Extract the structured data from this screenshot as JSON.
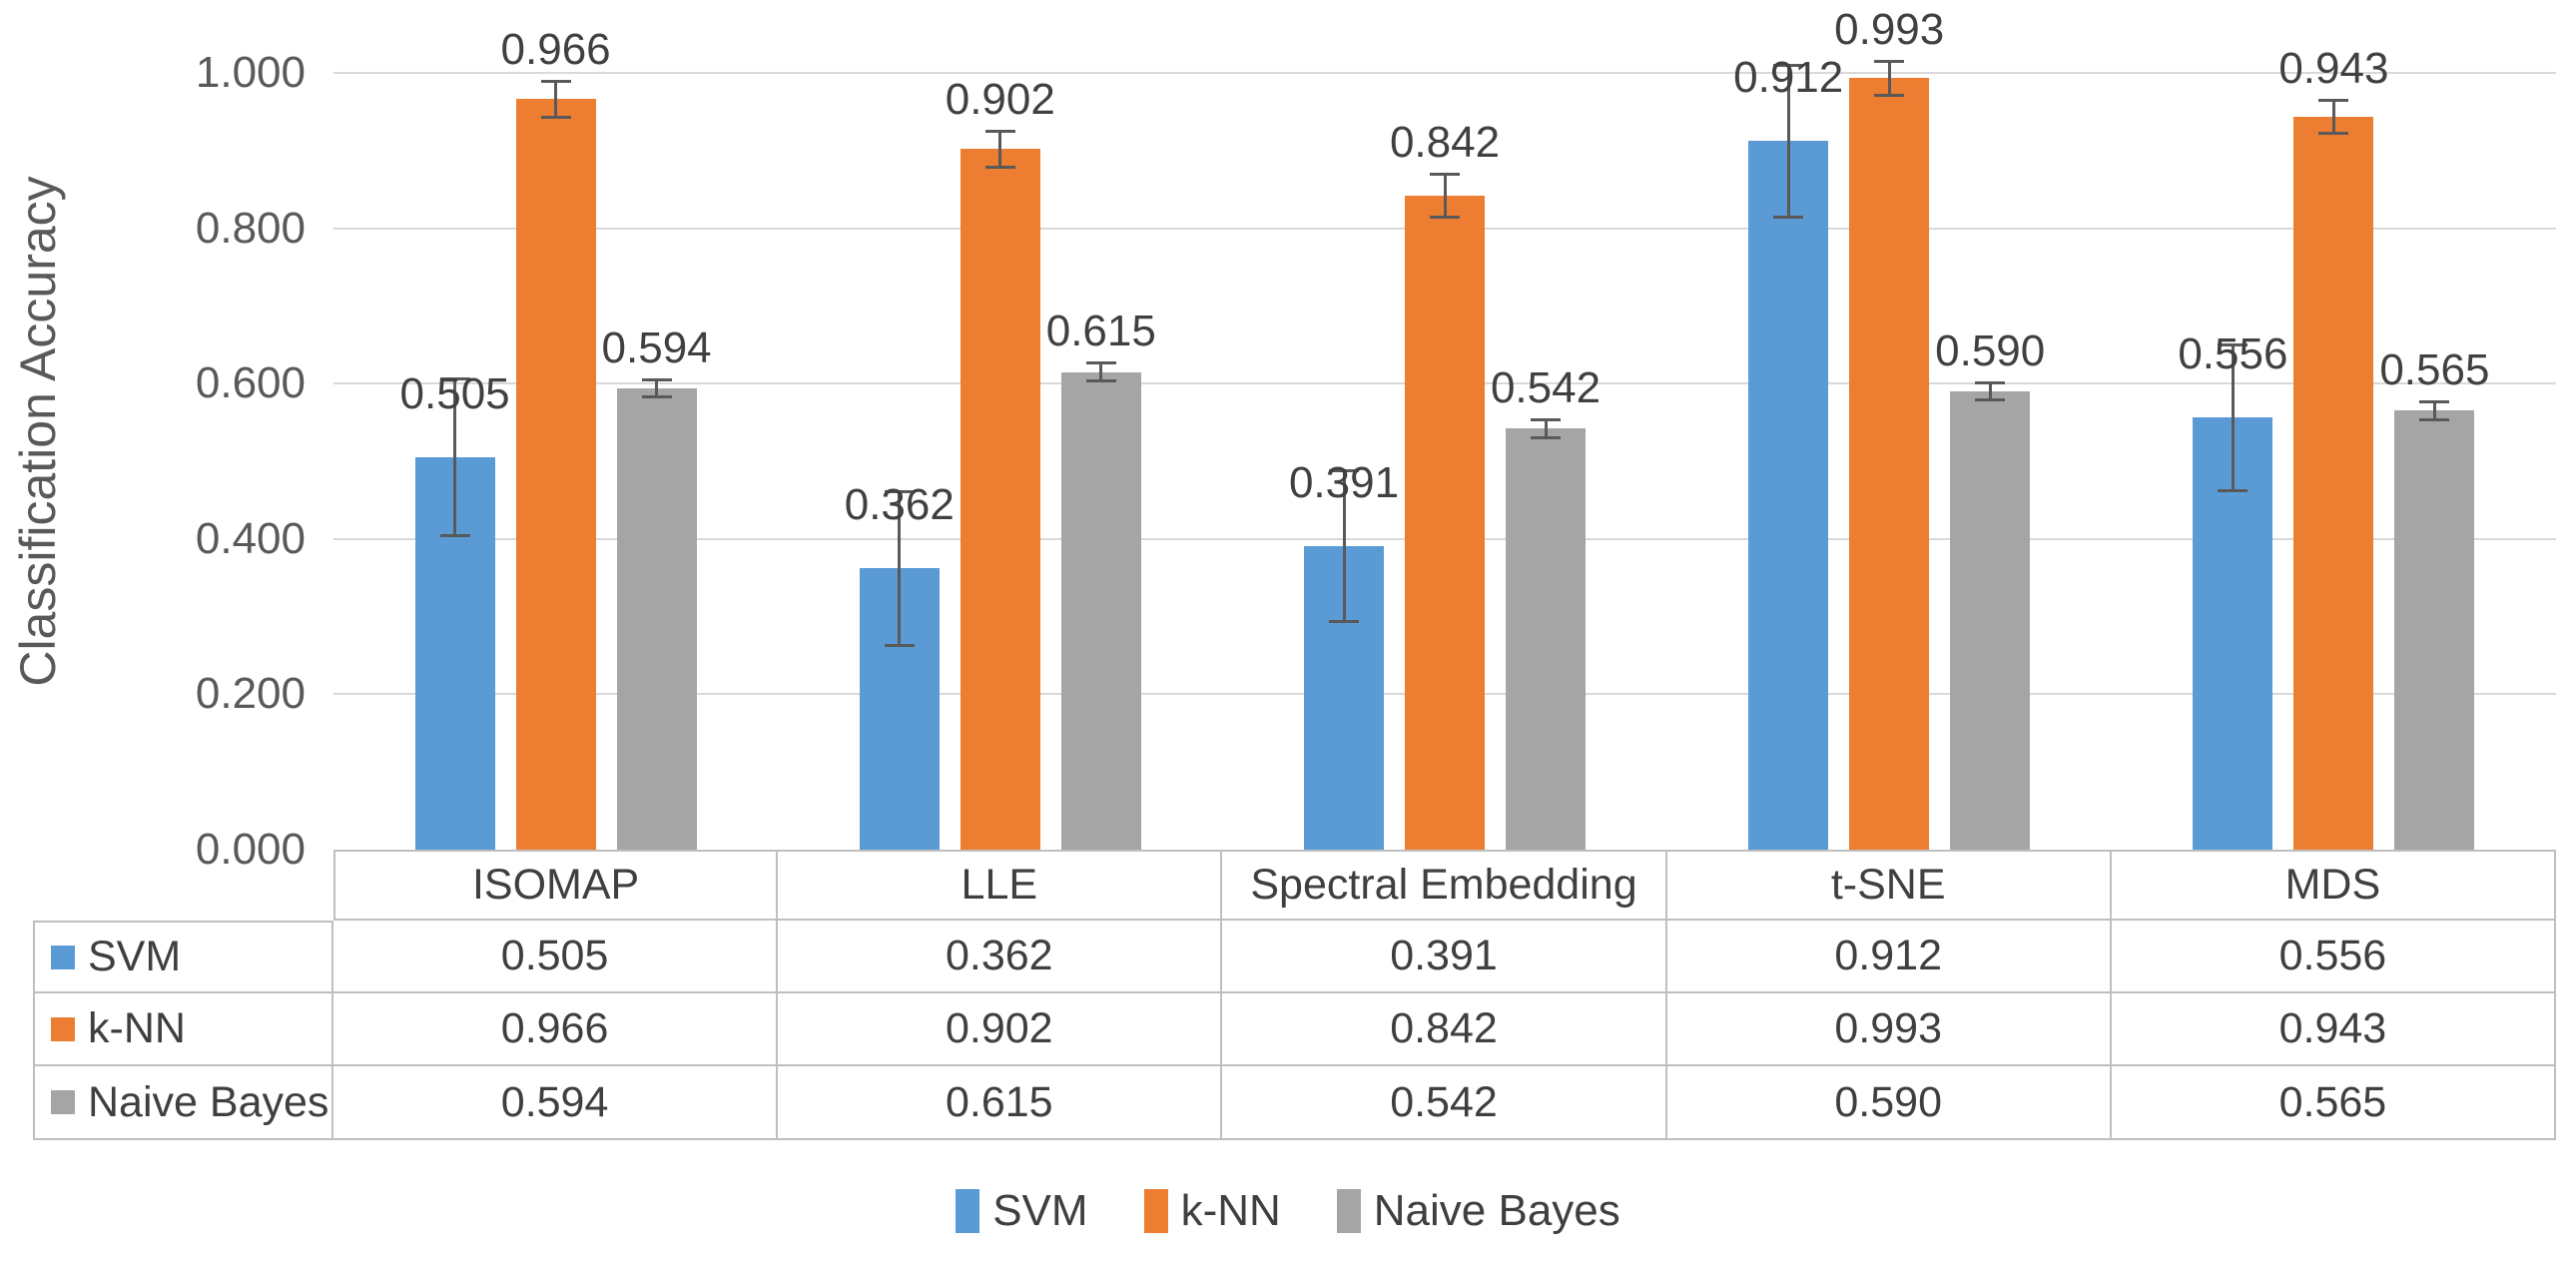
{
  "chart_data": {
    "type": "bar",
    "title": "",
    "xlabel": "",
    "ylabel": "Classification Accuracy",
    "ylim": [
      0.0,
      1.0
    ],
    "yticks": [
      0.0,
      0.2,
      0.4,
      0.6,
      0.8,
      1.0
    ],
    "ytick_labels": [
      "0.000",
      "0.200",
      "0.400",
      "0.600",
      "0.800",
      "1.000"
    ],
    "grid": true,
    "legend_position": "bottom",
    "error_bars": true,
    "categories": [
      "ISOMAP",
      "LLE",
      "Spectral Embedding",
      "t-SNE",
      "MDS"
    ],
    "series": [
      {
        "name": "SVM",
        "color": "#5B9BD5",
        "values": [
          0.505,
          0.362,
          0.391,
          0.912,
          0.556
        ],
        "errors": [
          0.102,
          0.1,
          0.098,
          0.098,
          0.095
        ]
      },
      {
        "name": "k-NN",
        "color": "#ED7D31",
        "values": [
          0.966,
          0.902,
          0.842,
          0.993,
          0.943
        ],
        "errors": [
          0.024,
          0.024,
          0.028,
          0.022,
          0.022
        ]
      },
      {
        "name": "Naive Bayes",
        "color": "#A5A5A5",
        "values": [
          0.594,
          0.615,
          0.542,
          0.59,
          0.565
        ],
        "errors": [
          0.012,
          0.012,
          0.012,
          0.012,
          0.012
        ]
      }
    ]
  },
  "table": {
    "header": [
      "",
      "ISOMAP",
      "LLE",
      "Spectral Embedding",
      "t-SNE",
      "MDS"
    ],
    "rows": [
      {
        "label": "SVM",
        "values": [
          "0.505",
          "0.362",
          "0.391",
          "0.912",
          "0.556"
        ]
      },
      {
        "label": "k-NN",
        "values": [
          "0.966",
          "0.902",
          "0.842",
          "0.993",
          "0.943"
        ]
      },
      {
        "label": "Naive Bayes",
        "values": [
          "0.594",
          "0.615",
          "0.542",
          "0.590",
          "0.565"
        ]
      }
    ]
  },
  "legend": {
    "items": [
      {
        "label": "SVM",
        "color": "#5B9BD5"
      },
      {
        "label": "k-NN",
        "color": "#ED7D31"
      },
      {
        "label": "Naive Bayes",
        "color": "#A5A5A5"
      }
    ]
  },
  "colors": {
    "gridline": "#D9D9D9",
    "table_border": "#BFBFBF",
    "error_bar": "#595959",
    "tick_text": "#595959",
    "label_text": "#404040"
  }
}
